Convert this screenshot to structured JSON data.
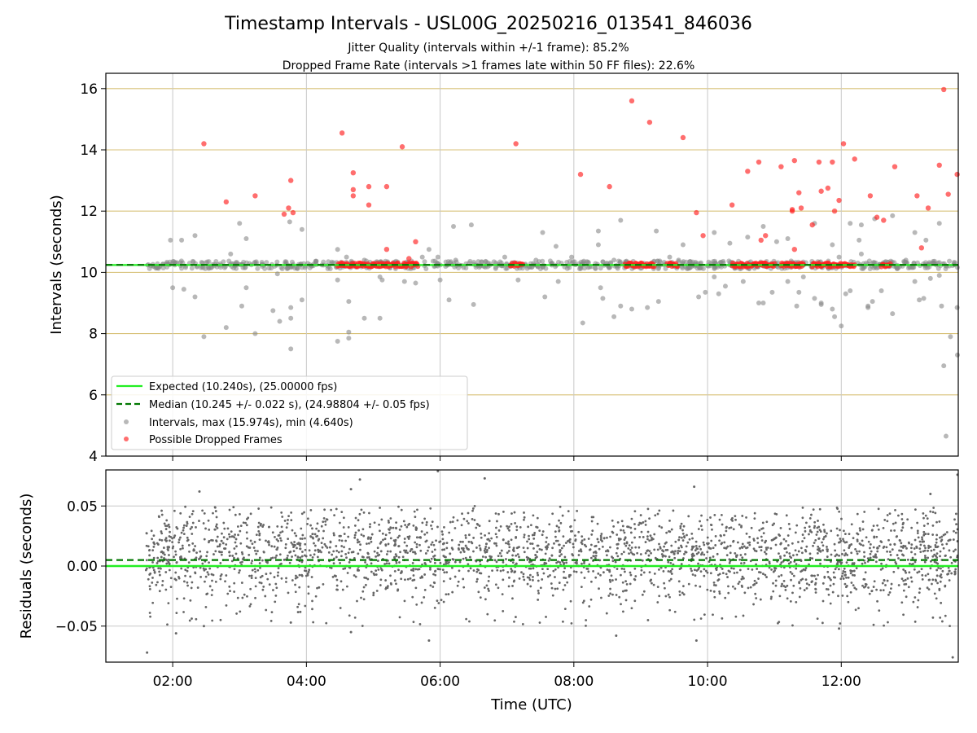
{
  "title": "Timestamp Intervals - USL00G_20250216_013541_846036",
  "subtitle1": "Jitter Quality (intervals within +/-1 frame): 85.2%",
  "subtitle2": "Dropped Frame Rate (intervals >1 frames late within 50 FF files): 22.6%",
  "colors": {
    "expected": "#22ee22",
    "median": "#007700",
    "intervals": "#888888",
    "dropped": "#ff2020",
    "hgrid": "#d8c27a",
    "vgrid": "#c8c8c8",
    "residuals": "#666666"
  },
  "chart_data": [
    {
      "type": "scatter",
      "ylabel": "Intervals (seconds)",
      "xlim": [
        "01:00",
        "13:45"
      ],
      "ylim": [
        4,
        16.5
      ],
      "yticks": [
        "4",
        "6",
        "8",
        "10",
        "12",
        "14",
        "16"
      ],
      "grid": true,
      "legend": {
        "placement": "lower-left",
        "entries": [
          "Expected (10.240s), (25.00000 fps)",
          "Median (10.245 +/- 0.022 s), (24.98804 +/- 0.05 fps)",
          "Intervals, max (15.974s), min (4.640s)",
          "Possible Dropped Frames"
        ]
      },
      "expected_value": 10.24,
      "median_value": 10.245,
      "data_start": "01:36",
      "data_end": "13:45",
      "series": [
        {
          "name": "Intervals, max (15.974s), min (4.640s)",
          "points": [
            [
              "01:58",
              11.05
            ],
            [
              "02:00",
              9.5
            ],
            [
              "02:08",
              11.05
            ],
            [
              "02:10",
              9.45
            ],
            [
              "02:20",
              11.2
            ],
            [
              "02:20",
              9.2
            ],
            [
              "02:28",
              7.9
            ],
            [
              "02:48",
              8.2
            ],
            [
              "02:52",
              10.6
            ],
            [
              "03:00",
              11.6
            ],
            [
              "03:02",
              8.9
            ],
            [
              "03:06",
              9.5
            ],
            [
              "03:06",
              11.1
            ],
            [
              "03:14",
              8.0
            ],
            [
              "03:30",
              8.75
            ],
            [
              "03:34",
              9.95
            ],
            [
              "03:36",
              8.4
            ],
            [
              "03:45",
              11.65
            ],
            [
              "03:46",
              8.85
            ],
            [
              "03:46",
              8.5
            ],
            [
              "03:46",
              7.5
            ],
            [
              "03:56",
              11.4
            ],
            [
              "03:56",
              9.1
            ],
            [
              "04:28",
              9.75
            ],
            [
              "04:28",
              10.75
            ],
            [
              "04:28",
              7.75
            ],
            [
              "04:36",
              10.5
            ],
            [
              "04:38",
              9.05
            ],
            [
              "04:38",
              8.05
            ],
            [
              "04:38",
              7.85
            ],
            [
              "04:52",
              10.4
            ],
            [
              "04:52",
              8.5
            ],
            [
              "05:06",
              9.85
            ],
            [
              "05:06",
              8.5
            ],
            [
              "05:08",
              9.75
            ],
            [
              "05:28",
              9.7
            ],
            [
              "05:38",
              9.65
            ],
            [
              "05:44",
              10.5
            ],
            [
              "05:50",
              10.75
            ],
            [
              "05:58",
              10.5
            ],
            [
              "06:00",
              9.75
            ],
            [
              "06:08",
              9.1
            ],
            [
              "06:12",
              11.5
            ],
            [
              "06:14",
              10.4
            ],
            [
              "06:28",
              11.55
            ],
            [
              "06:30",
              8.95
            ],
            [
              "06:58",
              10.5
            ],
            [
              "07:10",
              9.75
            ],
            [
              "07:26",
              10.4
            ],
            [
              "07:32",
              11.3
            ],
            [
              "07:34",
              9.2
            ],
            [
              "07:44",
              10.85
            ],
            [
              "07:46",
              9.7
            ],
            [
              "07:58",
              10.5
            ],
            [
              "08:08",
              8.35
            ],
            [
              "08:22",
              10.9
            ],
            [
              "08:22",
              11.35
            ],
            [
              "08:24",
              9.5
            ],
            [
              "08:26",
              9.15
            ],
            [
              "08:36",
              10.4
            ],
            [
              "08:36",
              8.55
            ],
            [
              "08:42",
              11.7
            ],
            [
              "08:42",
              8.9
            ],
            [
              "08:52",
              8.8
            ],
            [
              "09:06",
              8.85
            ],
            [
              "09:14",
              11.35
            ],
            [
              "09:16",
              9.05
            ],
            [
              "09:26",
              10.5
            ],
            [
              "09:34",
              10.4
            ],
            [
              "09:38",
              10.9
            ],
            [
              "09:52",
              9.2
            ],
            [
              "09:58",
              9.35
            ],
            [
              "10:06",
              11.3
            ],
            [
              "10:06",
              9.85
            ],
            [
              "10:10",
              9.3
            ],
            [
              "10:16",
              9.55
            ],
            [
              "10:20",
              10.95
            ],
            [
              "10:32",
              9.7
            ],
            [
              "10:36",
              11.15
            ],
            [
              "10:46",
              9.0
            ],
            [
              "10:50",
              11.5
            ],
            [
              "10:50",
              9.0
            ],
            [
              "10:58",
              9.35
            ],
            [
              "11:02",
              11.0
            ],
            [
              "11:12",
              11.1
            ],
            [
              "11:12",
              9.7
            ],
            [
              "11:20",
              8.9
            ],
            [
              "11:22",
              9.35
            ],
            [
              "11:26",
              9.85
            ],
            [
              "11:36",
              11.6
            ],
            [
              "11:36",
              9.15
            ],
            [
              "11:42",
              9.0
            ],
            [
              "11:42",
              8.95
            ],
            [
              "11:52",
              10.9
            ],
            [
              "11:52",
              8.8
            ],
            [
              "11:54",
              8.55
            ],
            [
              "11:58",
              10.5
            ],
            [
              "12:00",
              8.25
            ],
            [
              "12:04",
              9.3
            ],
            [
              "12:08",
              11.6
            ],
            [
              "12:08",
              9.4
            ],
            [
              "12:16",
              11.05
            ],
            [
              "12:18",
              11.55
            ],
            [
              "12:18",
              10.6
            ],
            [
              "12:24",
              8.9
            ],
            [
              "12:24",
              8.85
            ],
            [
              "12:28",
              9.05
            ],
            [
              "12:30",
              11.75
            ],
            [
              "12:36",
              9.4
            ],
            [
              "12:46",
              11.85
            ],
            [
              "12:46",
              8.65
            ],
            [
              "12:58",
              10.4
            ],
            [
              "13:06",
              11.3
            ],
            [
              "13:06",
              9.7
            ],
            [
              "13:10",
              9.1
            ],
            [
              "13:14",
              9.15
            ],
            [
              "13:16",
              11.05
            ],
            [
              "13:20",
              9.8
            ],
            [
              "13:28",
              11.6
            ],
            [
              "13:28",
              9.9
            ],
            [
              "13:30",
              8.9
            ],
            [
              "13:32",
              6.95
            ],
            [
              "13:34",
              4.65
            ],
            [
              "13:38",
              7.9
            ],
            [
              "13:44",
              8.85
            ],
            [
              "13:46",
              7.3
            ]
          ]
        },
        {
          "name": "Possible Dropped Frames",
          "points": [
            [
              "02:28",
              14.2
            ],
            [
              "02:48",
              12.3
            ],
            [
              "03:14",
              12.5
            ],
            [
              "03:40",
              11.9
            ],
            [
              "03:44",
              12.1
            ],
            [
              "03:46",
              13.0
            ],
            [
              "03:48",
              11.95
            ],
            [
              "04:32",
              14.55
            ],
            [
              "04:42",
              13.25
            ],
            [
              "04:42",
              12.7
            ],
            [
              "04:42",
              12.5
            ],
            [
              "04:56",
              12.8
            ],
            [
              "04:56",
              12.2
            ],
            [
              "05:12",
              12.8
            ],
            [
              "05:12",
              10.75
            ],
            [
              "05:26",
              14.1
            ],
            [
              "05:32",
              10.45
            ],
            [
              "05:38",
              11.0
            ],
            [
              "07:08",
              14.2
            ],
            [
              "08:06",
              13.2
            ],
            [
              "08:32",
              12.8
            ],
            [
              "08:52",
              15.6
            ],
            [
              "09:08",
              14.9
            ],
            [
              "09:38",
              14.4
            ],
            [
              "09:50",
              11.95
            ],
            [
              "09:56",
              11.2
            ],
            [
              "10:22",
              12.2
            ],
            [
              "10:36",
              13.3
            ],
            [
              "10:46",
              13.6
            ],
            [
              "10:48",
              11.05
            ],
            [
              "10:52",
              11.2
            ],
            [
              "11:06",
              13.45
            ],
            [
              "11:16",
              12.05
            ],
            [
              "11:16",
              12.0
            ],
            [
              "11:18",
              13.65
            ],
            [
              "11:18",
              10.75
            ],
            [
              "11:22",
              12.6
            ],
            [
              "11:24",
              12.1
            ],
            [
              "11:34",
              11.55
            ],
            [
              "11:40",
              13.6
            ],
            [
              "11:42",
              12.65
            ],
            [
              "11:48",
              12.75
            ],
            [
              "11:52",
              13.6
            ],
            [
              "11:54",
              12.0
            ],
            [
              "11:58",
              12.35
            ],
            [
              "12:02",
              14.2
            ],
            [
              "12:12",
              13.7
            ],
            [
              "12:26",
              12.5
            ],
            [
              "12:32",
              11.8
            ],
            [
              "12:38",
              11.7
            ],
            [
              "12:48",
              13.45
            ],
            [
              "13:08",
              12.5
            ],
            [
              "13:12",
              10.8
            ],
            [
              "13:18",
              12.1
            ],
            [
              "13:28",
              13.5
            ],
            [
              "13:32",
              15.97
            ],
            [
              "13:36",
              12.55
            ],
            [
              "13:44",
              13.2
            ]
          ],
          "clusters": [
            [
              "04:28",
              "05:40"
            ],
            [
              "07:03",
              "07:14"
            ],
            [
              "08:46",
              "09:12"
            ],
            [
              "09:24",
              "09:33"
            ],
            [
              "10:22",
              "11:00"
            ],
            [
              "11:06",
              "11:26"
            ],
            [
              "11:34",
              "12:12"
            ],
            [
              "12:36",
              "12:44"
            ]
          ]
        }
      ]
    },
    {
      "type": "scatter",
      "xlabel": "Time (UTC)",
      "ylabel": "Residuals (seconds)",
      "xlim": [
        "01:00",
        "13:45"
      ],
      "ylim": [
        -0.08,
        0.08
      ],
      "xticks": [
        "02:00",
        "04:00",
        "06:00",
        "08:00",
        "10:00",
        "12:00"
      ],
      "yticks": [
        "0.05",
        "0.00",
        "−0.05"
      ],
      "grid": true,
      "expected_value": 0.0,
      "median_value": 0.005,
      "series": [
        {
          "name": "Residuals",
          "distribution": "dense scatter of residuals between about -0.08 and 0.08 s, concentrated near 0.00 and 0.02 s",
          "points": [
            [
              "01:37",
              -0.072
            ],
            [
              "02:03",
              -0.056
            ],
            [
              "02:28",
              -0.05
            ],
            [
              "03:46",
              -0.047
            ],
            [
              "04:40",
              -0.055
            ],
            [
              "05:50",
              -0.062
            ],
            [
              "08:38",
              -0.058
            ],
            [
              "09:50",
              -0.062
            ],
            [
              "11:58",
              -0.052
            ],
            [
              "13:40",
              -0.076
            ],
            [
              "02:24",
              0.062
            ],
            [
              "04:48",
              0.072
            ],
            [
              "05:58",
              0.079
            ],
            [
              "06:40",
              0.073
            ],
            [
              "09:48",
              0.066
            ],
            [
              "13:45",
              0.076
            ],
            [
              "13:20",
              0.06
            ],
            [
              "04:40",
              0.064
            ]
          ]
        }
      ]
    }
  ]
}
